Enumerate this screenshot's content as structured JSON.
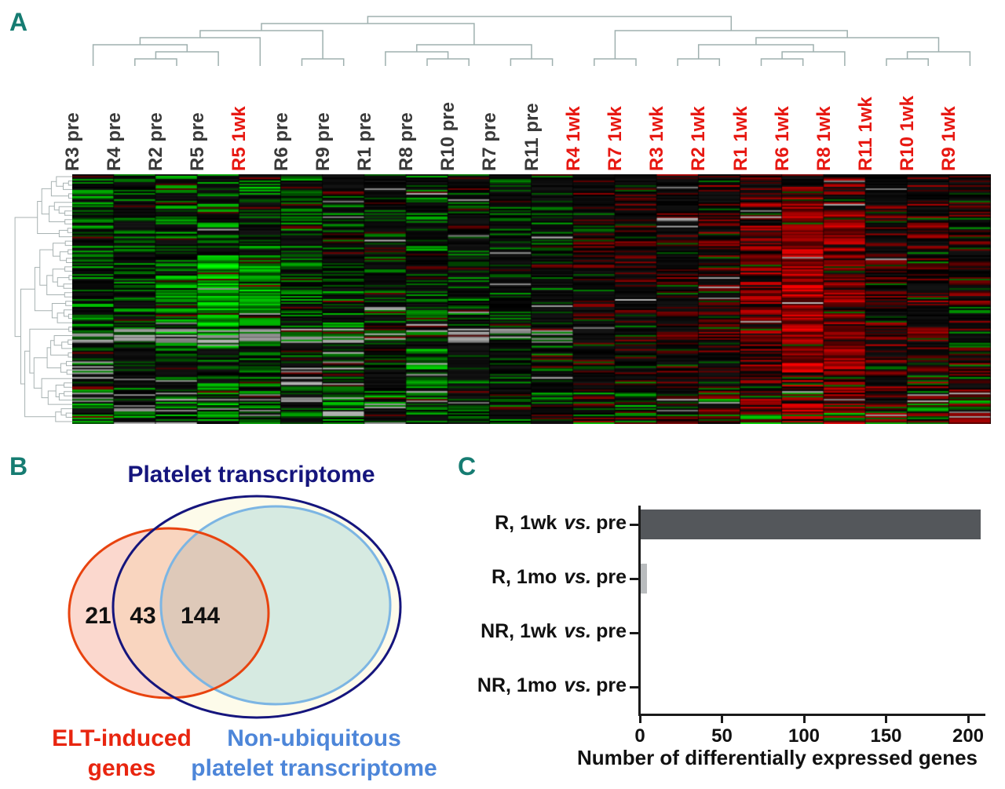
{
  "panels": {
    "a": {
      "label": "A"
    },
    "b": {
      "label": "B",
      "elt_label_lines": [
        "ELT-induced",
        "genes"
      ],
      "nonubiq_label_lines": [
        "Non-ubiquitous",
        "platelet transcriptome"
      ]
    },
    "c": {
      "label": "C"
    }
  },
  "chart_data": [
    {
      "type": "heatmap",
      "panel": "A",
      "rows": "genes (unlabeled), hierarchically clustered with row dendrogram at left",
      "columns": [
        {
          "label": "R3 pre",
          "label_color": "#3a3a3a"
        },
        {
          "label": "R4 pre",
          "label_color": "#3a3a3a"
        },
        {
          "label": "R2 pre",
          "label_color": "#3a3a3a"
        },
        {
          "label": "R5 pre",
          "label_color": "#3a3a3a"
        },
        {
          "label": "R5 1wk",
          "label_color": "#e71812"
        },
        {
          "label": "R6 pre",
          "label_color": "#3a3a3a"
        },
        {
          "label": "R9 pre",
          "label_color": "#3a3a3a"
        },
        {
          "label": "R1 pre",
          "label_color": "#3a3a3a"
        },
        {
          "label": "R8 pre",
          "label_color": "#3a3a3a"
        },
        {
          "label": "R10 pre",
          "label_color": "#3a3a3a"
        },
        {
          "label": "R7 pre",
          "label_color": "#3a3a3a"
        },
        {
          "label": "R11 pre",
          "label_color": "#3a3a3a"
        },
        {
          "label": "R4 1wk",
          "label_color": "#e71812"
        },
        {
          "label": "R7 1wk",
          "label_color": "#e71812"
        },
        {
          "label": "R3 1wk",
          "label_color": "#e71812"
        },
        {
          "label": "R2 1wk",
          "label_color": "#e71812"
        },
        {
          "label": "R1 1wk",
          "label_color": "#e71812"
        },
        {
          "label": "R6 1wk",
          "label_color": "#e71812"
        },
        {
          "label": "R8 1wk",
          "label_color": "#e71812"
        },
        {
          "label": "R11 1wk",
          "label_color": "#e71812"
        },
        {
          "label": "R10 1wk",
          "label_color": "#e71812"
        },
        {
          "label": "R9 1wk",
          "label_color": "#e71812"
        }
      ],
      "colorscale": {
        "up": "#ff0000",
        "down": "#00dd00",
        "unchanged": "#000000",
        "missing": "#999999"
      },
      "visual_pattern": "pre samples (left) predominantly green/down-regulated; 1wk samples (right) predominantly red/up-regulated; brightest green block in R5 pre and R5 1wk; brightest red column in R6 1wk and R8 1wk; gray streaks indicate missing values",
      "dendrograms": [
        "columns (top)",
        "rows (left)"
      ]
    },
    {
      "type": "venn",
      "panel": "B",
      "title": "Platelet transcriptome",
      "sets": [
        {
          "label": "ELT-induced genes",
          "outline_color": "#e8430f"
        },
        {
          "label": "Platelet transcriptome",
          "outline_color": "#15157d"
        },
        {
          "label": "Non-ubiquitous platelet transcriptome",
          "outline_color": "#7cb5e3"
        }
      ],
      "region_counts": [
        {
          "region": "ELT-induced only",
          "value": 21
        },
        {
          "region": "ELT-induced, in platelet transcriptome, outside non-ubiquitous set",
          "value": 43
        },
        {
          "region": "ELT-induced, in non-ubiquitous platelet transcriptome",
          "value": 144
        }
      ]
    },
    {
      "type": "bar",
      "panel": "C",
      "orientation": "horizontal",
      "categories": [
        "R, 1wk vs. pre",
        "R, 1mo vs. pre",
        "NR, 1wk vs. pre",
        "NR, 1mo vs. pre"
      ],
      "category_parts": [
        {
          "group": "R, 1wk",
          "vs": "vs.",
          "ref": "pre"
        },
        {
          "group": "R, 1mo",
          "vs": "vs.",
          "ref": "pre"
        },
        {
          "group": "NR, 1wk",
          "vs": "vs.",
          "ref": "pre"
        },
        {
          "group": "NR, 1mo",
          "vs": "vs.",
          "ref": "pre"
        }
      ],
      "values": [
        207,
        4,
        0,
        0
      ],
      "bar_colors": [
        "#54575b",
        "#b9bcbe",
        "#b9bcbe",
        "#b9bcbe"
      ],
      "xlabel": "Number of differentially expressed genes",
      "xlim": [
        0,
        215
      ],
      "xticks": [
        0,
        50,
        100,
        150,
        200
      ],
      "grid": false,
      "legend": false
    }
  ]
}
